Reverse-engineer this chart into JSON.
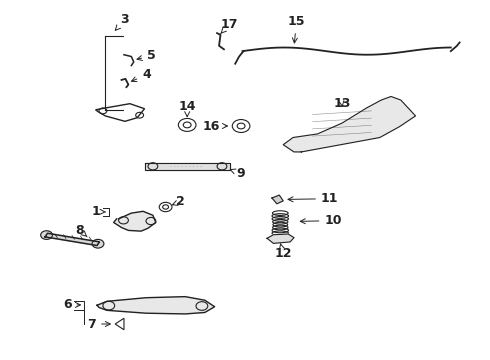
{
  "bg_color": "#ffffff",
  "fig_width": 4.9,
  "fig_height": 3.6,
  "dpi": 100,
  "line_color": "#222222"
}
